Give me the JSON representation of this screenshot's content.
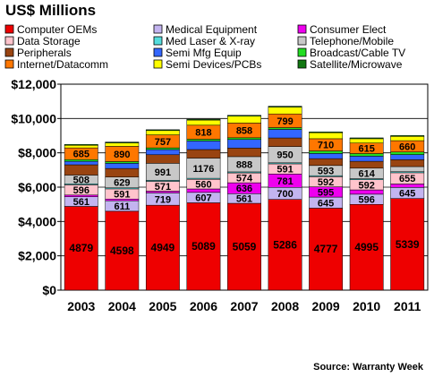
{
  "chart_data": {
    "type": "bar",
    "stacked": true,
    "title": "US$ Millions",
    "source": "Source: Warranty Week",
    "categories": [
      "2003",
      "2004",
      "2005",
      "2006",
      "2007",
      "2008",
      "2009",
      "2010",
      "2011"
    ],
    "ylim": [
      0,
      12000
    ],
    "yticks": [
      "$0",
      "$2,000",
      "$4,000",
      "$6,000",
      "$8,000",
      "$10,000",
      "$12,000"
    ],
    "ytick_values": [
      0,
      2000,
      4000,
      6000,
      8000,
      10000,
      12000
    ],
    "grid": true,
    "legend_position": "top",
    "series": [
      {
        "name": "Computer OEMs",
        "color": "#ee0000",
        "labeled": true,
        "values": [
          4879,
          4598,
          4949,
          5089,
          5059,
          5286,
          4777,
          4995,
          5339
        ]
      },
      {
        "name": "Medical Equipment",
        "color": "#c3b4f0",
        "labeled": true,
        "values": [
          561,
          611,
          719,
          607,
          561,
          700,
          645,
          596,
          645
        ]
      },
      {
        "name": "Consumer Elect",
        "color": "#ee00ee",
        "labeled": true,
        "values": [
          100,
          100,
          100,
          200,
          636,
          781,
          595,
          250,
          200
        ]
      },
      {
        "name": "Data Storage",
        "color": "#ffc4cc",
        "labeled": true,
        "values": [
          596,
          591,
          571,
          560,
          574,
          591,
          592,
          592,
          655
        ]
      },
      {
        "name": "Med Laser & X-ray",
        "color": "#55dddd",
        "labeled": false,
        "values": [
          60,
          60,
          60,
          60,
          60,
          60,
          60,
          60,
          60
        ]
      },
      {
        "name": "Telephone/Mobile",
        "color": "#c8c8c8",
        "labeled": true,
        "values": [
          508,
          629,
          991,
          1176,
          888,
          950,
          593,
          614,
          300
        ]
      },
      {
        "name": "Peripherals",
        "color": "#994411",
        "labeled": false,
        "values": [
          600,
          500,
          500,
          500,
          500,
          500,
          400,
          400,
          400
        ]
      },
      {
        "name": "Semi Mfg Equip",
        "color": "#3366ff",
        "labeled": false,
        "values": [
          200,
          300,
          300,
          500,
          500,
          500,
          300,
          300,
          300
        ]
      },
      {
        "name": "Broadcast/Cable TV",
        "color": "#22dd22",
        "labeled": false,
        "values": [
          100,
          100,
          100,
          100,
          100,
          100,
          150,
          150,
          150
        ]
      },
      {
        "name": "Internet/Datacomm",
        "color": "#ff7700",
        "labeled": true,
        "values": [
          685,
          890,
          757,
          818,
          858,
          799,
          710,
          615,
          660
        ]
      },
      {
        "name": "Semi Devices/PCBs",
        "color": "#ffff00",
        "labeled": false,
        "values": [
          150,
          200,
          250,
          300,
          400,
          400,
          350,
          250,
          250
        ]
      },
      {
        "name": "Satellite/Microwave",
        "color": "#117711",
        "labeled": false,
        "values": [
          50,
          50,
          50,
          50,
          50,
          50,
          50,
          50,
          50
        ]
      }
    ]
  }
}
